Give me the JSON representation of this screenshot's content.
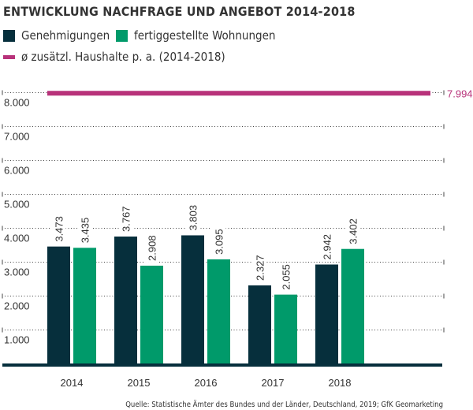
{
  "chart_data": {
    "type": "bar",
    "title": "ENTWICKLUNG NACHFRAGE UND ANGEBOT 2014-2018",
    "categories": [
      "2014",
      "2015",
      "2016",
      "2017",
      "2018"
    ],
    "series": [
      {
        "name": "Genehmigungen",
        "values": [
          3473,
          3767,
          3803,
          2327,
          2942
        ],
        "labels": [
          "3.473",
          "3.767",
          "3.803",
          "2.327",
          "2.942"
        ],
        "color": "#062f3c"
      },
      {
        "name": "fertiggestellte Wohnungen",
        "values": [
          3435,
          2908,
          3095,
          2055,
          3402
        ],
        "labels": [
          "3.435",
          "2.908",
          "3.095",
          "2.055",
          "3.402"
        ],
        "color": "#009a6a"
      }
    ],
    "reference_line": {
      "name": "ø zusätzl. Haushalte p. a. (2014-2018)",
      "value": 7994,
      "label": "7.994",
      "color": "#b8327a"
    },
    "ylim": [
      0,
      8000
    ],
    "yticks": [
      1000,
      2000,
      3000,
      4000,
      5000,
      6000,
      7000,
      8000
    ],
    "ytick_labels": [
      "1.000",
      "2.000",
      "3.000",
      "4.000",
      "5.000",
      "6.000",
      "7.000",
      "8.000"
    ],
    "grid": true,
    "legend_position": "top-left",
    "source": "Quelle: Statistische Ämter des Bundes und der Länder, Deutschland, 2019; GfK Geomarketing"
  }
}
